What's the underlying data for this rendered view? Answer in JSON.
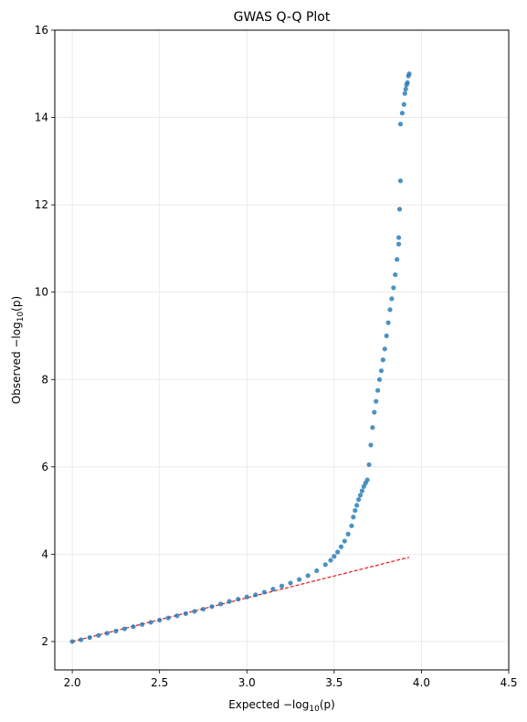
{
  "chart_data": {
    "type": "scatter",
    "title": "GWAS Q-Q Plot",
    "xlabel": {
      "prefix": "Expected −log",
      "sub": "10",
      "suffix": "(p)"
    },
    "ylabel": {
      "prefix": "Observed −log",
      "sub": "10",
      "suffix": "(p)"
    },
    "xlim": [
      1.9,
      4.5
    ],
    "ylim": [
      1.35,
      16
    ],
    "xticks": [
      2.0,
      2.5,
      3.0,
      3.5,
      4.0,
      4.5
    ],
    "xtick_labels": [
      "2.0",
      "2.5",
      "3.0",
      "3.5",
      "4.0",
      "4.5"
    ],
    "yticks": [
      2,
      4,
      6,
      8,
      10,
      12,
      14,
      16
    ],
    "ytick_labels": [
      "2",
      "4",
      "6",
      "8",
      "10",
      "12",
      "14",
      "16"
    ],
    "grid": true,
    "reference_line": {
      "x": [
        2.0,
        3.93
      ],
      "y": [
        2.0,
        3.93
      ],
      "color": "#e41a1c",
      "style": "dashed"
    },
    "point_color": "#1f77b4",
    "points": [
      [
        2.0,
        2.0
      ],
      [
        2.05,
        2.04
      ],
      [
        2.1,
        2.09
      ],
      [
        2.15,
        2.14
      ],
      [
        2.2,
        2.19
      ],
      [
        2.25,
        2.24
      ],
      [
        2.3,
        2.29
      ],
      [
        2.35,
        2.34
      ],
      [
        2.4,
        2.39
      ],
      [
        2.45,
        2.44
      ],
      [
        2.5,
        2.49
      ],
      [
        2.55,
        2.54
      ],
      [
        2.6,
        2.59
      ],
      [
        2.65,
        2.64
      ],
      [
        2.7,
        2.69
      ],
      [
        2.75,
        2.74
      ],
      [
        2.8,
        2.8
      ],
      [
        2.85,
        2.86
      ],
      [
        2.9,
        2.92
      ],
      [
        2.95,
        2.97
      ],
      [
        3.0,
        3.02
      ],
      [
        3.05,
        3.07
      ],
      [
        3.1,
        3.13
      ],
      [
        3.15,
        3.2
      ],
      [
        3.2,
        3.27
      ],
      [
        3.25,
        3.34
      ],
      [
        3.3,
        3.42
      ],
      [
        3.35,
        3.51
      ],
      [
        3.4,
        3.62
      ],
      [
        3.45,
        3.76
      ],
      [
        3.48,
        3.86
      ],
      [
        3.5,
        3.95
      ],
      [
        3.52,
        4.05
      ],
      [
        3.54,
        4.17
      ],
      [
        3.56,
        4.3
      ],
      [
        3.58,
        4.46
      ],
      [
        3.6,
        4.65
      ],
      [
        3.61,
        4.85
      ],
      [
        3.62,
        5.0
      ],
      [
        3.63,
        5.12
      ],
      [
        3.64,
        5.25
      ],
      [
        3.65,
        5.35
      ],
      [
        3.66,
        5.45
      ],
      [
        3.67,
        5.55
      ],
      [
        3.68,
        5.63
      ],
      [
        3.69,
        5.7
      ],
      [
        3.7,
        6.05
      ],
      [
        3.71,
        6.5
      ],
      [
        3.72,
        6.9
      ],
      [
        3.73,
        7.25
      ],
      [
        3.74,
        7.5
      ],
      [
        3.75,
        7.75
      ],
      [
        3.76,
        8.0
      ],
      [
        3.77,
        8.2
      ],
      [
        3.78,
        8.45
      ],
      [
        3.79,
        8.7
      ],
      [
        3.8,
        9.0
      ],
      [
        3.81,
        9.3
      ],
      [
        3.82,
        9.6
      ],
      [
        3.83,
        9.85
      ],
      [
        3.84,
        10.1
      ],
      [
        3.85,
        10.4
      ],
      [
        3.86,
        10.75
      ],
      [
        3.87,
        11.1
      ],
      [
        3.87,
        11.25
      ],
      [
        3.875,
        11.9
      ],
      [
        3.88,
        12.55
      ],
      [
        3.88,
        13.85
      ],
      [
        3.89,
        14.1
      ],
      [
        3.9,
        14.3
      ],
      [
        3.905,
        14.55
      ],
      [
        3.91,
        14.65
      ],
      [
        3.915,
        14.75
      ],
      [
        3.92,
        14.8
      ],
      [
        3.925,
        14.95
      ],
      [
        3.93,
        15.0
      ]
    ]
  }
}
